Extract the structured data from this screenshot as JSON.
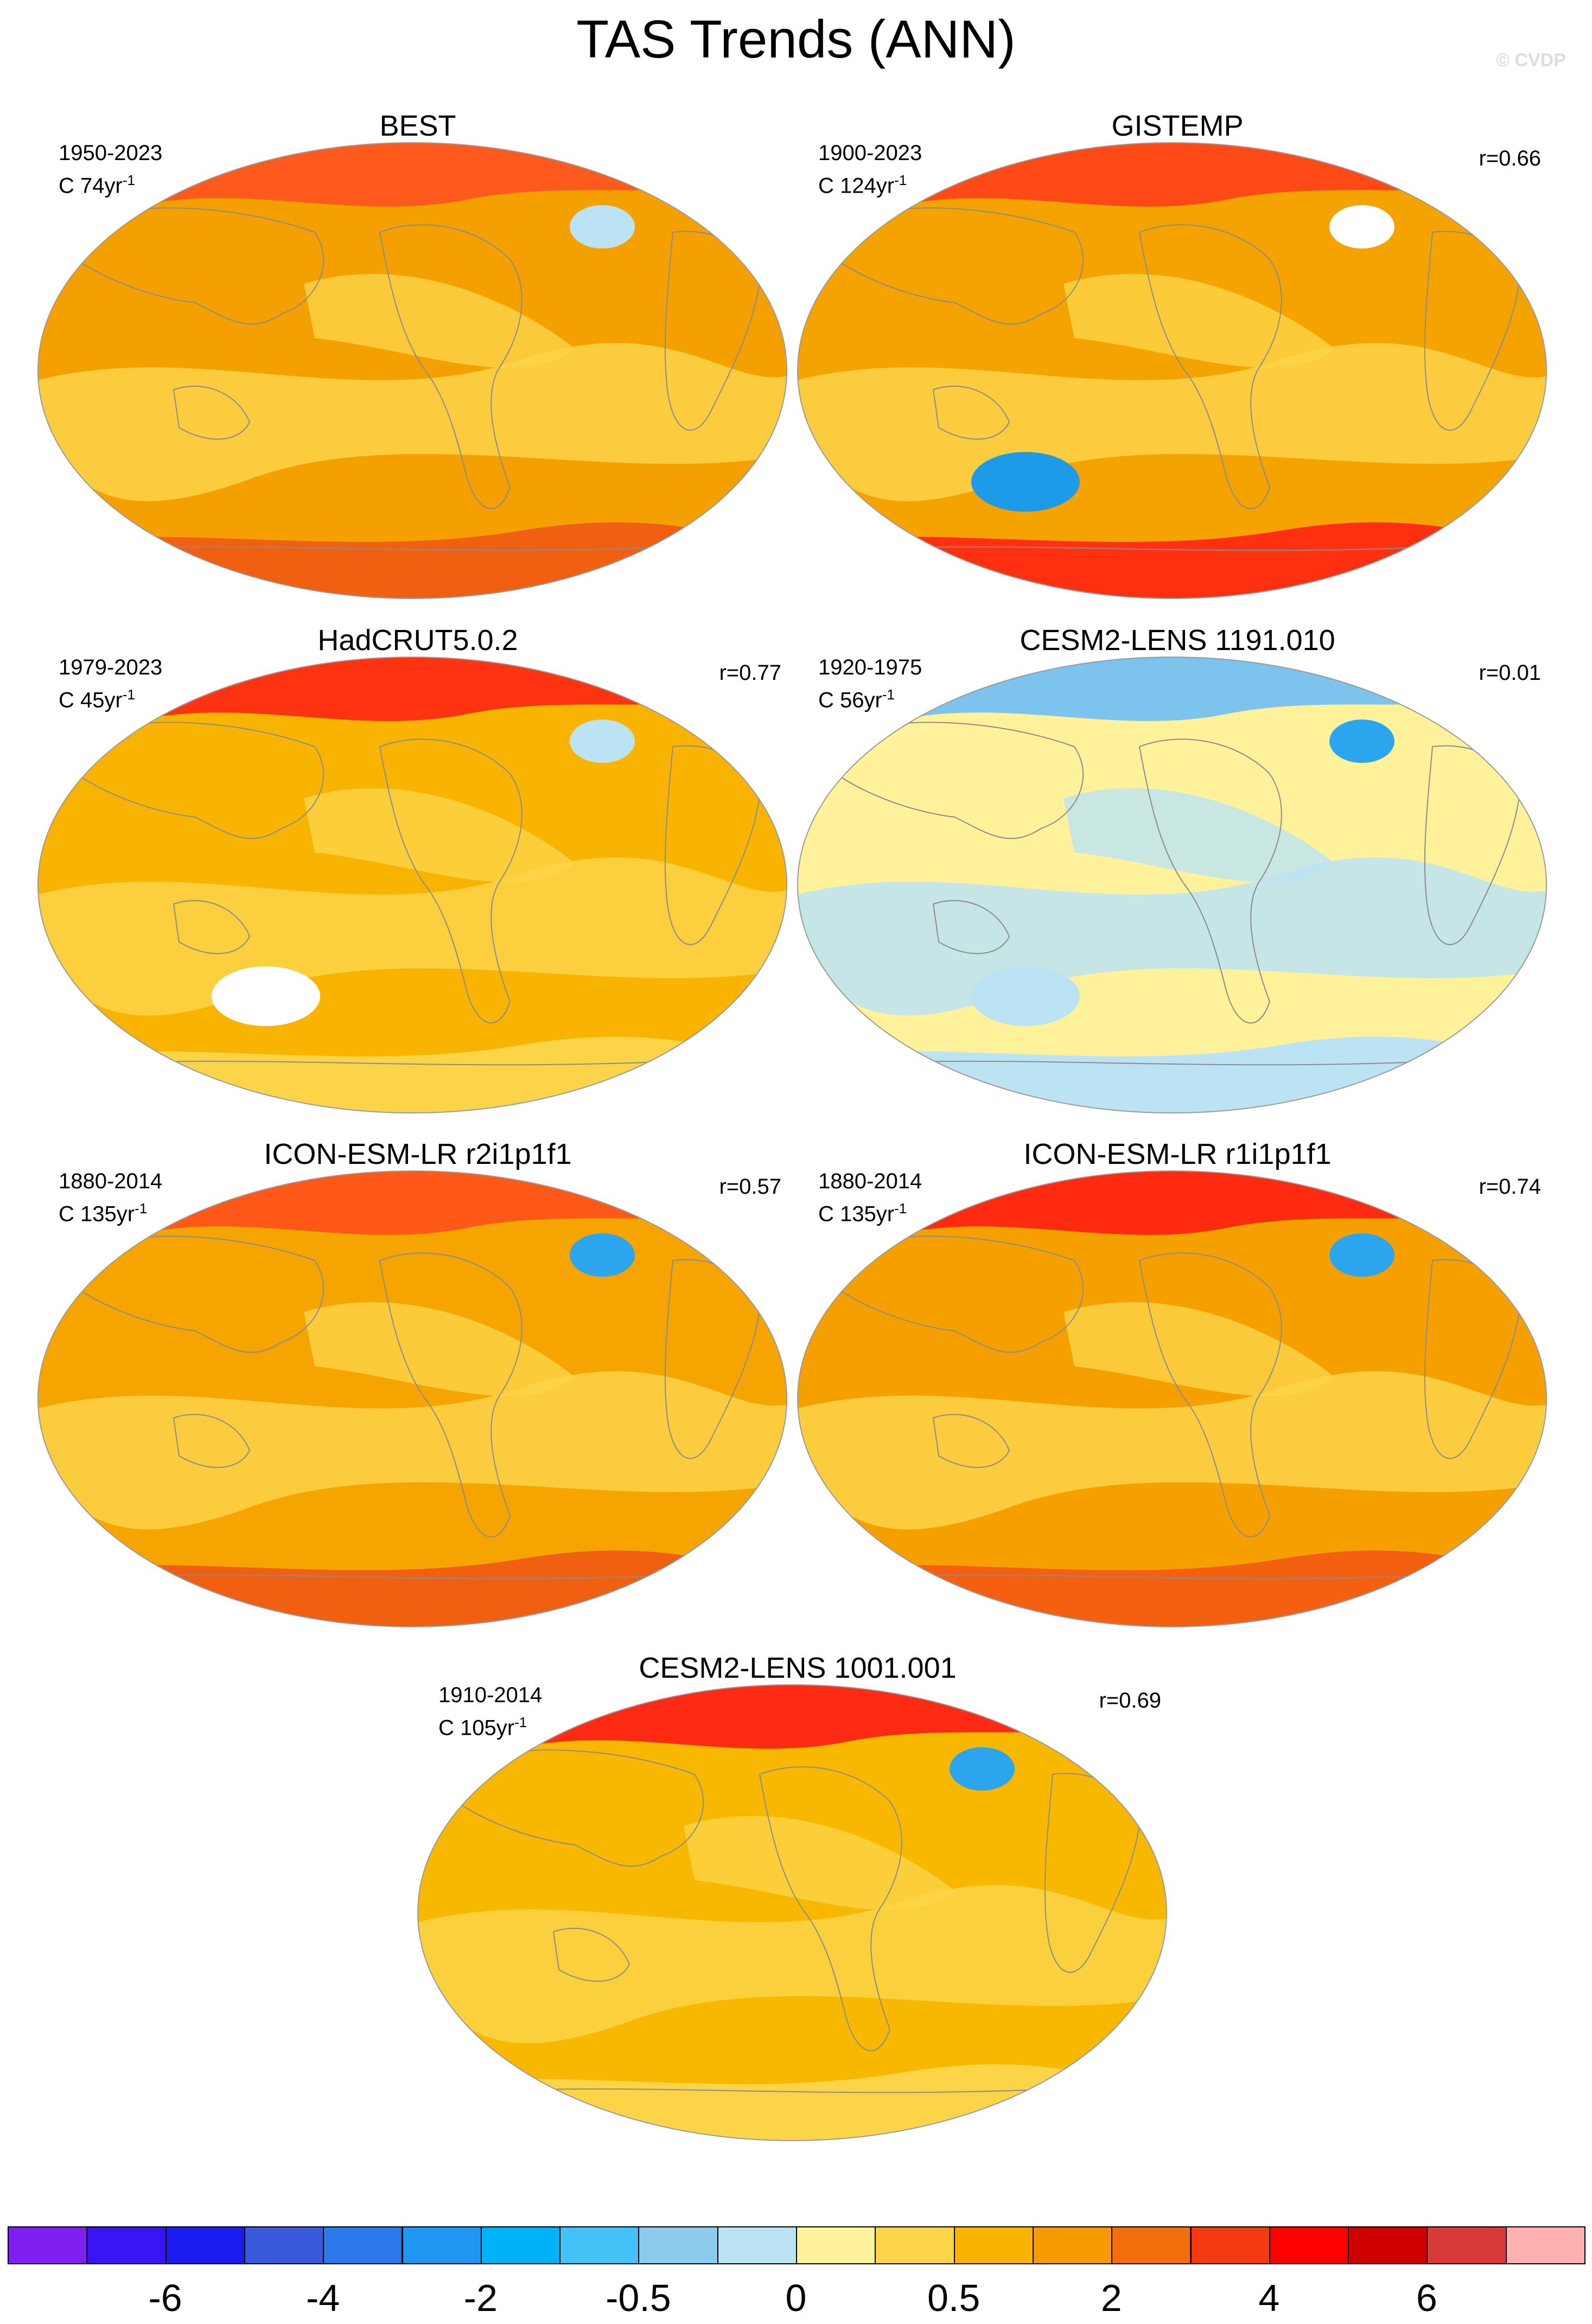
{
  "figure": {
    "title": "TAS Trends (ANN)",
    "watermark": "© CVDP"
  },
  "panels": [
    {
      "title": "BEST",
      "period": "1950-2023",
      "units_prefix": "C 74yr",
      "units_exp": "-1",
      "corr": "",
      "base_color": "#f4a000",
      "arctic_color": "#ff5a1e",
      "cool_patches": [
        "#bce3f4"
      ],
      "antarctic_strip": "#f06010"
    },
    {
      "title": "GISTEMP",
      "period": "1900-2023",
      "units_prefix": "C 124yr",
      "units_exp": "-1",
      "corr": "r=0.66",
      "base_color": "#f5a300",
      "arctic_color": "#ff4a18",
      "cool_patches": [
        "#ffffff",
        "#1e9be8"
      ],
      "antarctic_strip": "#ff3010"
    },
    {
      "title": "HadCRUT5.0.2",
      "period": "1979-2023",
      "units_prefix": "C 45yr",
      "units_exp": "-1",
      "corr": "r=0.77",
      "base_color": "#f8b400",
      "arctic_color": "#ff3312",
      "cool_patches": [
        "#bce3f4",
        "#ffffff"
      ],
      "antarctic_strip": "#fcd448"
    },
    {
      "title": "CESM2-LENS 1191.010",
      "period": "1920-1975",
      "units_prefix": "C 56yr",
      "units_exp": "-1",
      "corr": "r=0.01",
      "base_color": "#fff29a",
      "arctic_color": "#7cc4ee",
      "cool_patches": [
        "#2aa5ee",
        "#bce3f4"
      ],
      "antarctic_strip": "#bce3f4"
    },
    {
      "title": "ICON-ESM-LR r2i1p1f1",
      "period": "1880-2014",
      "units_prefix": "C 135yr",
      "units_exp": "-1",
      "corr": "r=0.57",
      "base_color": "#f6a400",
      "arctic_color": "#ff5818",
      "cool_patches": [
        "#2aa5ee"
      ],
      "antarctic_strip": "#f06010"
    },
    {
      "title": "ICON-ESM-LR r1i1p1f1",
      "period": "1880-2014",
      "units_prefix": "C 135yr",
      "units_exp": "-1",
      "corr": "r=0.74",
      "base_color": "#f6a000",
      "arctic_color": "#ff2a10",
      "cool_patches": [
        "#2aa5ee"
      ],
      "antarctic_strip": "#f46010"
    },
    {
      "title": "CESM2-LENS 1001.001",
      "period": "1910-2014",
      "units_prefix": "C 105yr",
      "units_exp": "-1",
      "corr": "r=0.69",
      "base_color": "#f8b800",
      "arctic_color": "#ff2a14",
      "cool_patches": [
        "#2aa5ee"
      ],
      "antarctic_strip": "#fcd448"
    }
  ],
  "colorbar": {
    "colors": [
      "#8020f0",
      "#3a14f5",
      "#1a1cf0",
      "#3a5adc",
      "#2a78ea",
      "#1e96f2",
      "#00b2f8",
      "#42c2f6",
      "#8ccaee",
      "#bce3f4",
      "#fff29a",
      "#fcd448",
      "#f8b400",
      "#f59a00",
      "#f56e0c",
      "#f43a10",
      "#fe0000",
      "#d00000",
      "#d83a3a",
      "#ffb0b0"
    ],
    "labels": [
      "-6",
      "-4",
      "-2",
      "-0.5",
      "0",
      "0.5",
      "2",
      "4",
      "6"
    ]
  }
}
